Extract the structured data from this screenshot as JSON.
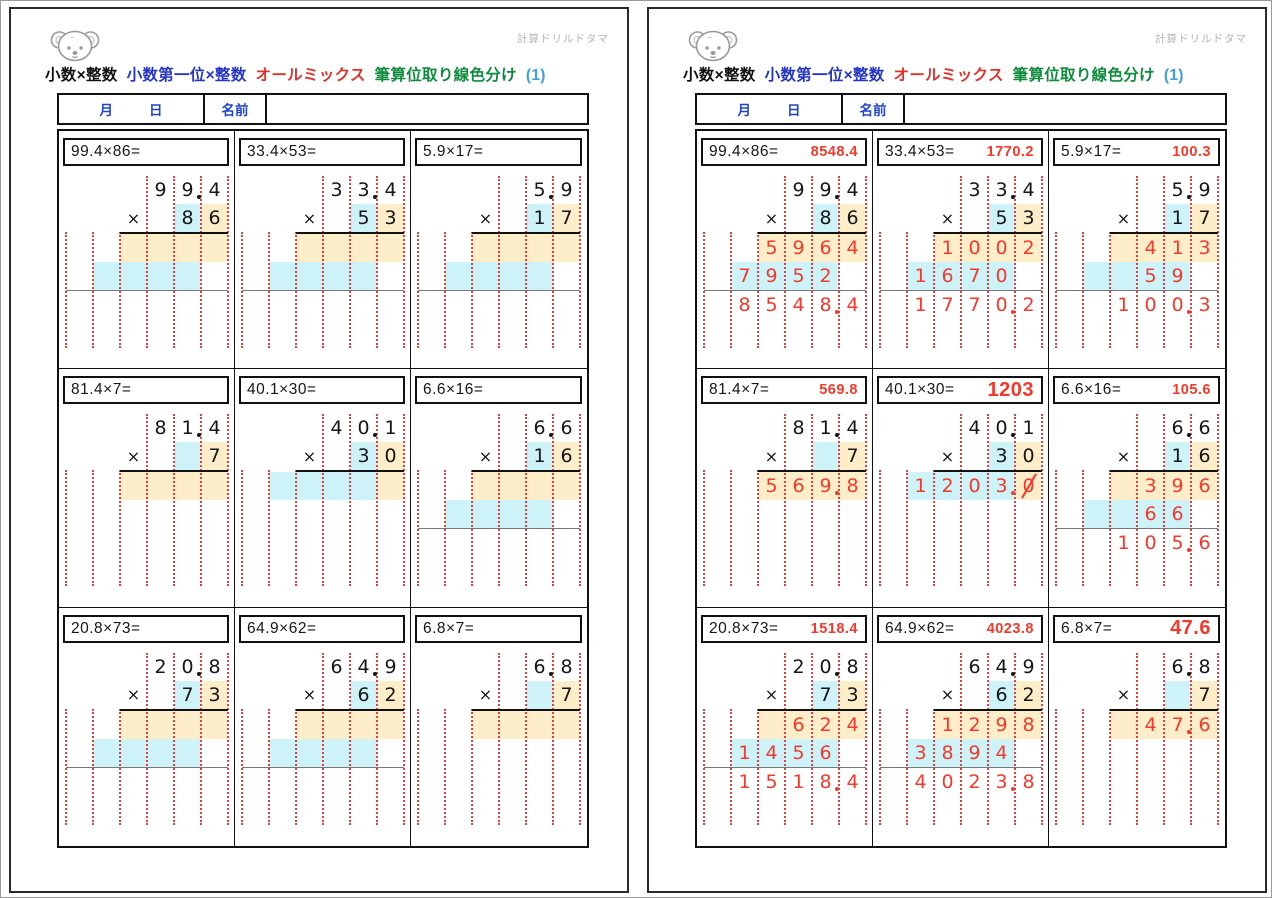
{
  "header": {
    "site_name": "計算ドリルドタマ",
    "logo_icon": "bear-icon",
    "title_parts": [
      {
        "text": "小数×整数",
        "color": "#111111"
      },
      {
        "text": "小数第一位×整数",
        "color": "#2535c8"
      },
      {
        "text": "オールミックス",
        "color": "#e03228"
      },
      {
        "text": "筆算位取り線色分け",
        "color": "#0d8c3c"
      },
      {
        "text": "(1)",
        "color": "#3f9fdc"
      }
    ],
    "date_row": {
      "month_label": "月",
      "day_label": "日",
      "name_label": "名前",
      "name_value": ""
    }
  },
  "pages": [
    {
      "kind": "problems",
      "show_answers": false
    },
    {
      "kind": "answers",
      "show_answers": true
    }
  ],
  "colors": {
    "band_cyan": "#cdf2f8",
    "band_orange": "#fdeec9",
    "guide_line_red": "#e04040",
    "answer_red": "#f4392b",
    "label_blue": "#2145cc"
  },
  "layout_hints": {
    "grid": "3x3",
    "columns_per_problem": 6,
    "multiplier_highlights": {
      "col4": "cyan",
      "col5": "orange"
    }
  },
  "problems": [
    {
      "expression": "99.4×86=",
      "answer": "8548.4",
      "top": [
        "",
        "",
        "",
        "9",
        "9.",
        "4"
      ],
      "mul": [
        "",
        "",
        "×",
        "",
        "8",
        "6"
      ],
      "rows": [
        {
          "bands": [
            {
              "color": "orange",
              "from": 2,
              "to": 5
            }
          ],
          "d": [
            "",
            "",
            "5",
            "9",
            "6",
            "4"
          ]
        },
        {
          "bands": [
            {
              "color": "cyan",
              "from": 1,
              "to": 4
            }
          ],
          "d": [
            "",
            "7",
            "9",
            "5",
            "2",
            ""
          ]
        }
      ],
      "sum_line": true,
      "final": [
        "",
        "8",
        "5",
        "4",
        "8.",
        "4"
      ]
    },
    {
      "expression": "33.4×53=",
      "answer": "1770.2",
      "top": [
        "",
        "",
        "",
        "3",
        "3.",
        "4"
      ],
      "mul": [
        "",
        "",
        "×",
        "",
        "5",
        "3"
      ],
      "rows": [
        {
          "bands": [
            {
              "color": "orange",
              "from": 2,
              "to": 5
            }
          ],
          "d": [
            "",
            "",
            "1",
            "0",
            "0",
            "2"
          ]
        },
        {
          "bands": [
            {
              "color": "cyan",
              "from": 1,
              "to": 4
            }
          ],
          "d": [
            "",
            "1",
            "6",
            "7",
            "0",
            ""
          ]
        }
      ],
      "sum_line": true,
      "final": [
        "",
        "1",
        "7",
        "7",
        "0.",
        "2"
      ]
    },
    {
      "expression": "5.9×17=",
      "answer": "100.3",
      "top": [
        "",
        "",
        "",
        "",
        "5.",
        "9"
      ],
      "mul": [
        "",
        "",
        "×",
        "",
        "1",
        "7"
      ],
      "rows": [
        {
          "bands": [
            {
              "color": "orange",
              "from": 2,
              "to": 5
            }
          ],
          "d": [
            "",
            "",
            "",
            "4",
            "1",
            "3"
          ]
        },
        {
          "bands": [
            {
              "color": "cyan",
              "from": 1,
              "to": 4
            }
          ],
          "d": [
            "",
            "",
            "",
            "5",
            "9",
            ""
          ]
        }
      ],
      "sum_line": true,
      "final": [
        "",
        "",
        "1",
        "0",
        "0.",
        "3"
      ]
    },
    {
      "expression": "81.4×7=",
      "answer": "569.8",
      "top": [
        "",
        "",
        "",
        "8",
        "1.",
        "4"
      ],
      "mul": [
        "",
        "",
        "×",
        "",
        "",
        "7"
      ],
      "rows": [
        {
          "bands": [
            {
              "color": "orange",
              "from": 2,
              "to": 5
            }
          ],
          "d": [
            "",
            "",
            "5",
            "6",
            "9.",
            "8"
          ]
        }
      ],
      "sum_line": false,
      "final": null
    },
    {
      "expression": "40.1×30=",
      "answer": "1203",
      "top": [
        "",
        "",
        "",
        "4",
        "0.",
        "1"
      ],
      "mul": [
        "",
        "",
        "×",
        "",
        "3",
        "0"
      ],
      "rows": [
        {
          "bands": [
            {
              "color": "cyan",
              "from": 1,
              "to": 4
            },
            {
              "color": "orange",
              "from": 5,
              "to": 5
            }
          ],
          "d": [
            "",
            "1",
            "2",
            "0",
            "3.",
            "0~"
          ]
        }
      ],
      "sum_line": false,
      "final": null
    },
    {
      "expression": "6.6×16=",
      "answer": "105.6",
      "top": [
        "",
        "",
        "",
        "",
        "6.",
        "6"
      ],
      "mul": [
        "",
        "",
        "×",
        "",
        "1",
        "6"
      ],
      "rows": [
        {
          "bands": [
            {
              "color": "orange",
              "from": 2,
              "to": 5
            }
          ],
          "d": [
            "",
            "",
            "",
            "3",
            "9",
            "6"
          ]
        },
        {
          "bands": [
            {
              "color": "cyan",
              "from": 1,
              "to": 4
            }
          ],
          "d": [
            "",
            "",
            "",
            "6",
            "6",
            ""
          ]
        }
      ],
      "sum_line": true,
      "final": [
        "",
        "",
        "1",
        "0",
        "5.",
        "6"
      ]
    },
    {
      "expression": "20.8×73=",
      "answer": "1518.4",
      "top": [
        "",
        "",
        "",
        "2",
        "0.",
        "8"
      ],
      "mul": [
        "",
        "",
        "×",
        "",
        "7",
        "3"
      ],
      "rows": [
        {
          "bands": [
            {
              "color": "orange",
              "from": 2,
              "to": 5
            }
          ],
          "d": [
            "",
            "",
            "",
            "6",
            "2",
            "4"
          ]
        },
        {
          "bands": [
            {
              "color": "cyan",
              "from": 1,
              "to": 4
            }
          ],
          "d": [
            "",
            "1",
            "4",
            "5",
            "6",
            ""
          ]
        }
      ],
      "sum_line": true,
      "final": [
        "",
        "1",
        "5",
        "1",
        "8.",
        "4"
      ]
    },
    {
      "expression": "64.9×62=",
      "answer": "4023.8",
      "top": [
        "",
        "",
        "",
        "6",
        "4.",
        "9"
      ],
      "mul": [
        "",
        "",
        "×",
        "",
        "6",
        "2"
      ],
      "rows": [
        {
          "bands": [
            {
              "color": "orange",
              "from": 2,
              "to": 5
            }
          ],
          "d": [
            "",
            "",
            "1",
            "2",
            "9",
            "8"
          ]
        },
        {
          "bands": [
            {
              "color": "cyan",
              "from": 1,
              "to": 4
            }
          ],
          "d": [
            "",
            "3",
            "8",
            "9",
            "4",
            ""
          ]
        }
      ],
      "sum_line": true,
      "final": [
        "",
        "4",
        "0",
        "2",
        "3.",
        "8"
      ]
    },
    {
      "expression": "6.8×7=",
      "answer": "47.6",
      "top": [
        "",
        "",
        "",
        "",
        "6.",
        "8"
      ],
      "mul": [
        "",
        "",
        "×",
        "",
        "",
        "7"
      ],
      "rows": [
        {
          "bands": [
            {
              "color": "orange",
              "from": 2,
              "to": 5
            }
          ],
          "d": [
            "",
            "",
            "",
            "4",
            "7.",
            "6"
          ]
        }
      ],
      "sum_line": false,
      "final": null
    }
  ]
}
